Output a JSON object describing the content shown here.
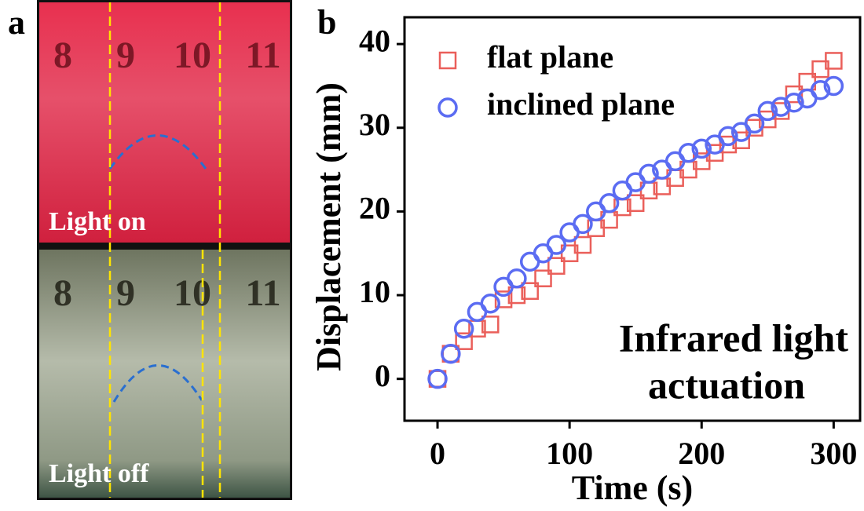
{
  "photo": {
    "panel_label": "a",
    "top_caption": "Light on",
    "bottom_caption": "Light off",
    "ruler_numbers": [
      "8",
      "9",
      "10",
      "11"
    ]
  },
  "chart_data": {
    "type": "scatter",
    "panel_label": "b",
    "x_label": "Time (s)",
    "y_label": "Displacement (mm)",
    "annotation": [
      "Infrared light",
      "actuation"
    ],
    "x": [
      0,
      10,
      20,
      30,
      40,
      50,
      60,
      70,
      80,
      90,
      100,
      110,
      120,
      130,
      140,
      150,
      160,
      170,
      180,
      190,
      200,
      210,
      220,
      230,
      240,
      250,
      260,
      270,
      280,
      290,
      300
    ],
    "series": [
      {
        "name": "flat plane",
        "color": "#ea5f5a",
        "marker": "square",
        "values": [
          0,
          3,
          4.5,
          6,
          6.5,
          9.5,
          10,
          10.5,
          12,
          13.5,
          15,
          16,
          18,
          19,
          20.5,
          21,
          22.5,
          23,
          24,
          25,
          26,
          27,
          28,
          28.5,
          30,
          31,
          32,
          34,
          35.5,
          37,
          38
        ]
      },
      {
        "name": "inclined plane",
        "color": "#5b6cf2",
        "marker": "circle",
        "values": [
          0,
          3,
          6,
          8,
          9,
          11,
          12,
          14,
          15,
          16,
          17.5,
          18.5,
          20,
          21,
          22.5,
          23.5,
          24.5,
          25,
          26,
          27,
          27.5,
          28,
          29,
          29.5,
          30.5,
          32,
          32.5,
          33,
          33.5,
          34.5,
          35
        ]
      }
    ],
    "xlim": [
      -25,
      320
    ],
    "ylim": [
      -5,
      43.2
    ],
    "xticks": [
      0,
      100,
      200,
      300
    ],
    "yticks": [
      0,
      10,
      20,
      30,
      40
    ]
  }
}
